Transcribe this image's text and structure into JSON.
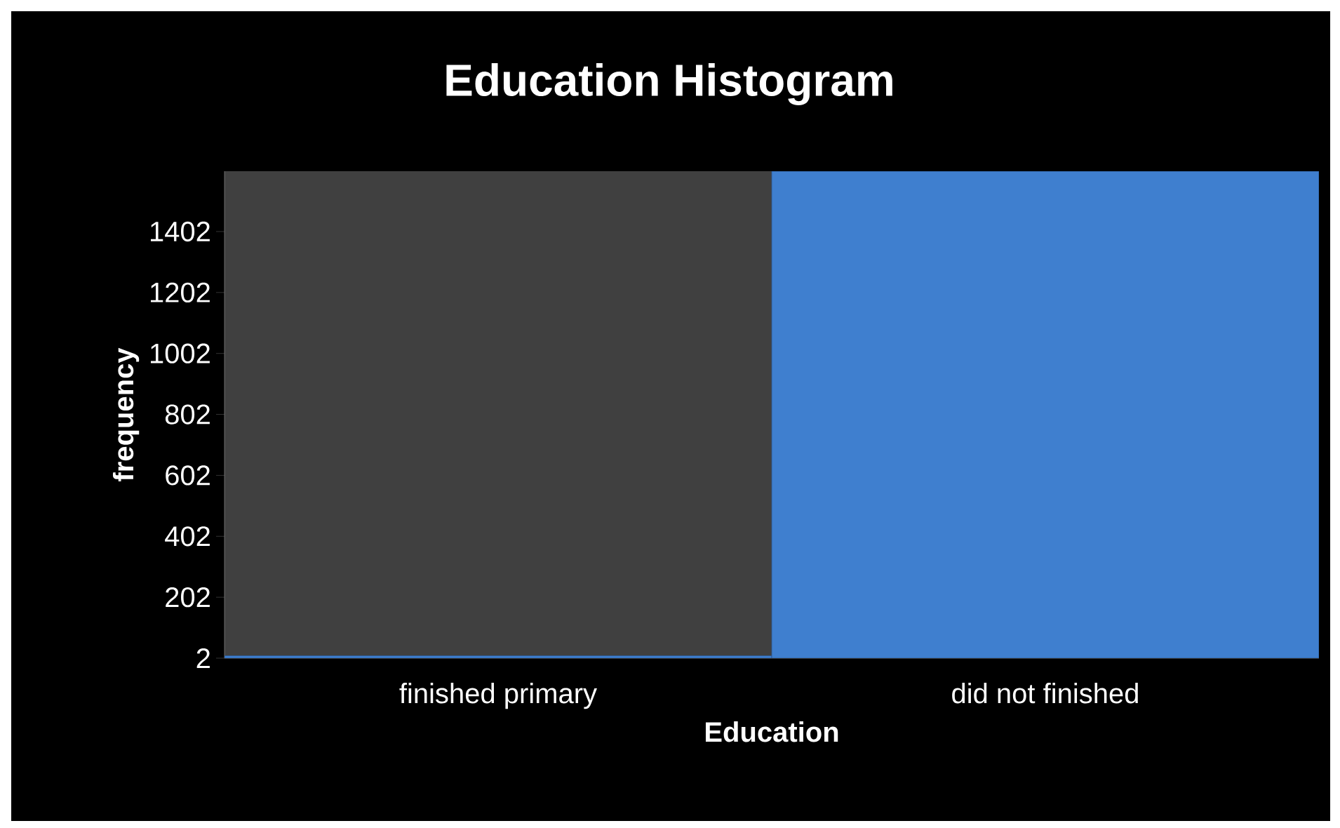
{
  "chart_data": {
    "type": "bar",
    "title": "Education Histogram",
    "xlabel": "Education",
    "ylabel": "frequency",
    "categories": [
      "finished primary",
      "did not finished"
    ],
    "values": [
      10,
      1600
    ],
    "color": "#3f7fcf",
    "ylim": [
      2,
      1600
    ],
    "yticks": [
      2,
      202,
      402,
      602,
      802,
      1002,
      1202,
      1402
    ]
  }
}
